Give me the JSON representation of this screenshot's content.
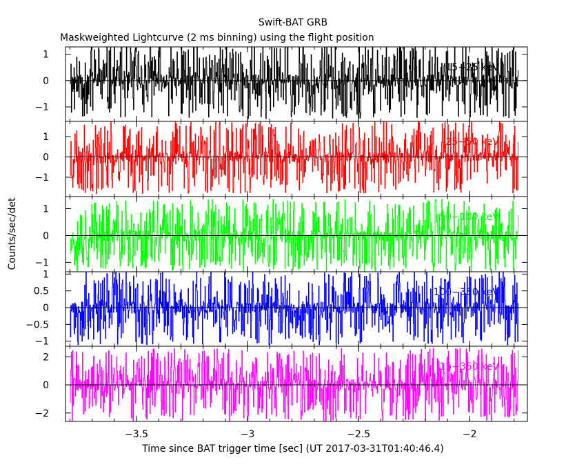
{
  "title": "Swift-BAT GRB",
  "subtitle": "Maskweighted Lightcurve (2 ms binning) using the flight position",
  "chart_data": {
    "type": "line",
    "style": "histogram-step",
    "binning_sec": 0.002,
    "xlabel": "Time since BAT trigger time [sec] (UT 2017-03-31T01:40:46.4)",
    "ylabel": "Counts/sec/det",
    "xlim": [
      -3.82,
      -1.74
    ],
    "x_start": -3.8,
    "x_end": -1.78,
    "xticks": [
      -3.5,
      -3,
      -2.5,
      -2
    ],
    "xtick_labels": [
      "−3.5",
      "−3",
      "−2.5",
      "−2"
    ],
    "panels": [
      {
        "name": "15-25 keV",
        "label": "15−25 keV",
        "color": "#000000",
        "ylim": [
          -1.55,
          1.28
        ],
        "yticks": [
          -1,
          0,
          1
        ],
        "ytick_labels": [
          "−1",
          "0",
          "1"
        ],
        "amplitude": 1.45,
        "seed": 11
      },
      {
        "name": "25-50 keV",
        "label": "25−50 keV",
        "color": "#ff0000",
        "ylim": [
          -1.95,
          1.75
        ],
        "yticks": [
          -1,
          0,
          1
        ],
        "ytick_labels": [
          "−1",
          "0",
          "1"
        ],
        "amplitude": 1.8,
        "seed": 23
      },
      {
        "name": "50-100 keV",
        "label": "50−100 keV",
        "color": "#00ff00",
        "ylim": [
          -1.35,
          1.45
        ],
        "yticks": [
          -1,
          0,
          1
        ],
        "ytick_labels": [
          "−1",
          "0",
          "1"
        ],
        "amplitude": 1.35,
        "seed": 37
      },
      {
        "name": "100-350 keV",
        "label": "100−350 keV",
        "color": "#0000ff",
        "ylim": [
          -1.15,
          1.07
        ],
        "yticks": [
          -1,
          -0.5,
          0,
          0.5,
          1
        ],
        "ytick_labels": [
          "−1",
          "−0.5",
          "0",
          "0.5",
          "1"
        ],
        "amplitude": 1.12,
        "seed": 53
      },
      {
        "name": "15-350 keV",
        "label": "15−350 keV",
        "color": "#ff00ff",
        "ylim": [
          -2.6,
          2.75
        ],
        "yticks": [
          -2,
          0,
          2
        ],
        "ytick_labels": [
          "−2",
          "0",
          "2"
        ],
        "amplitude": 2.6,
        "seed": 71
      }
    ]
  }
}
